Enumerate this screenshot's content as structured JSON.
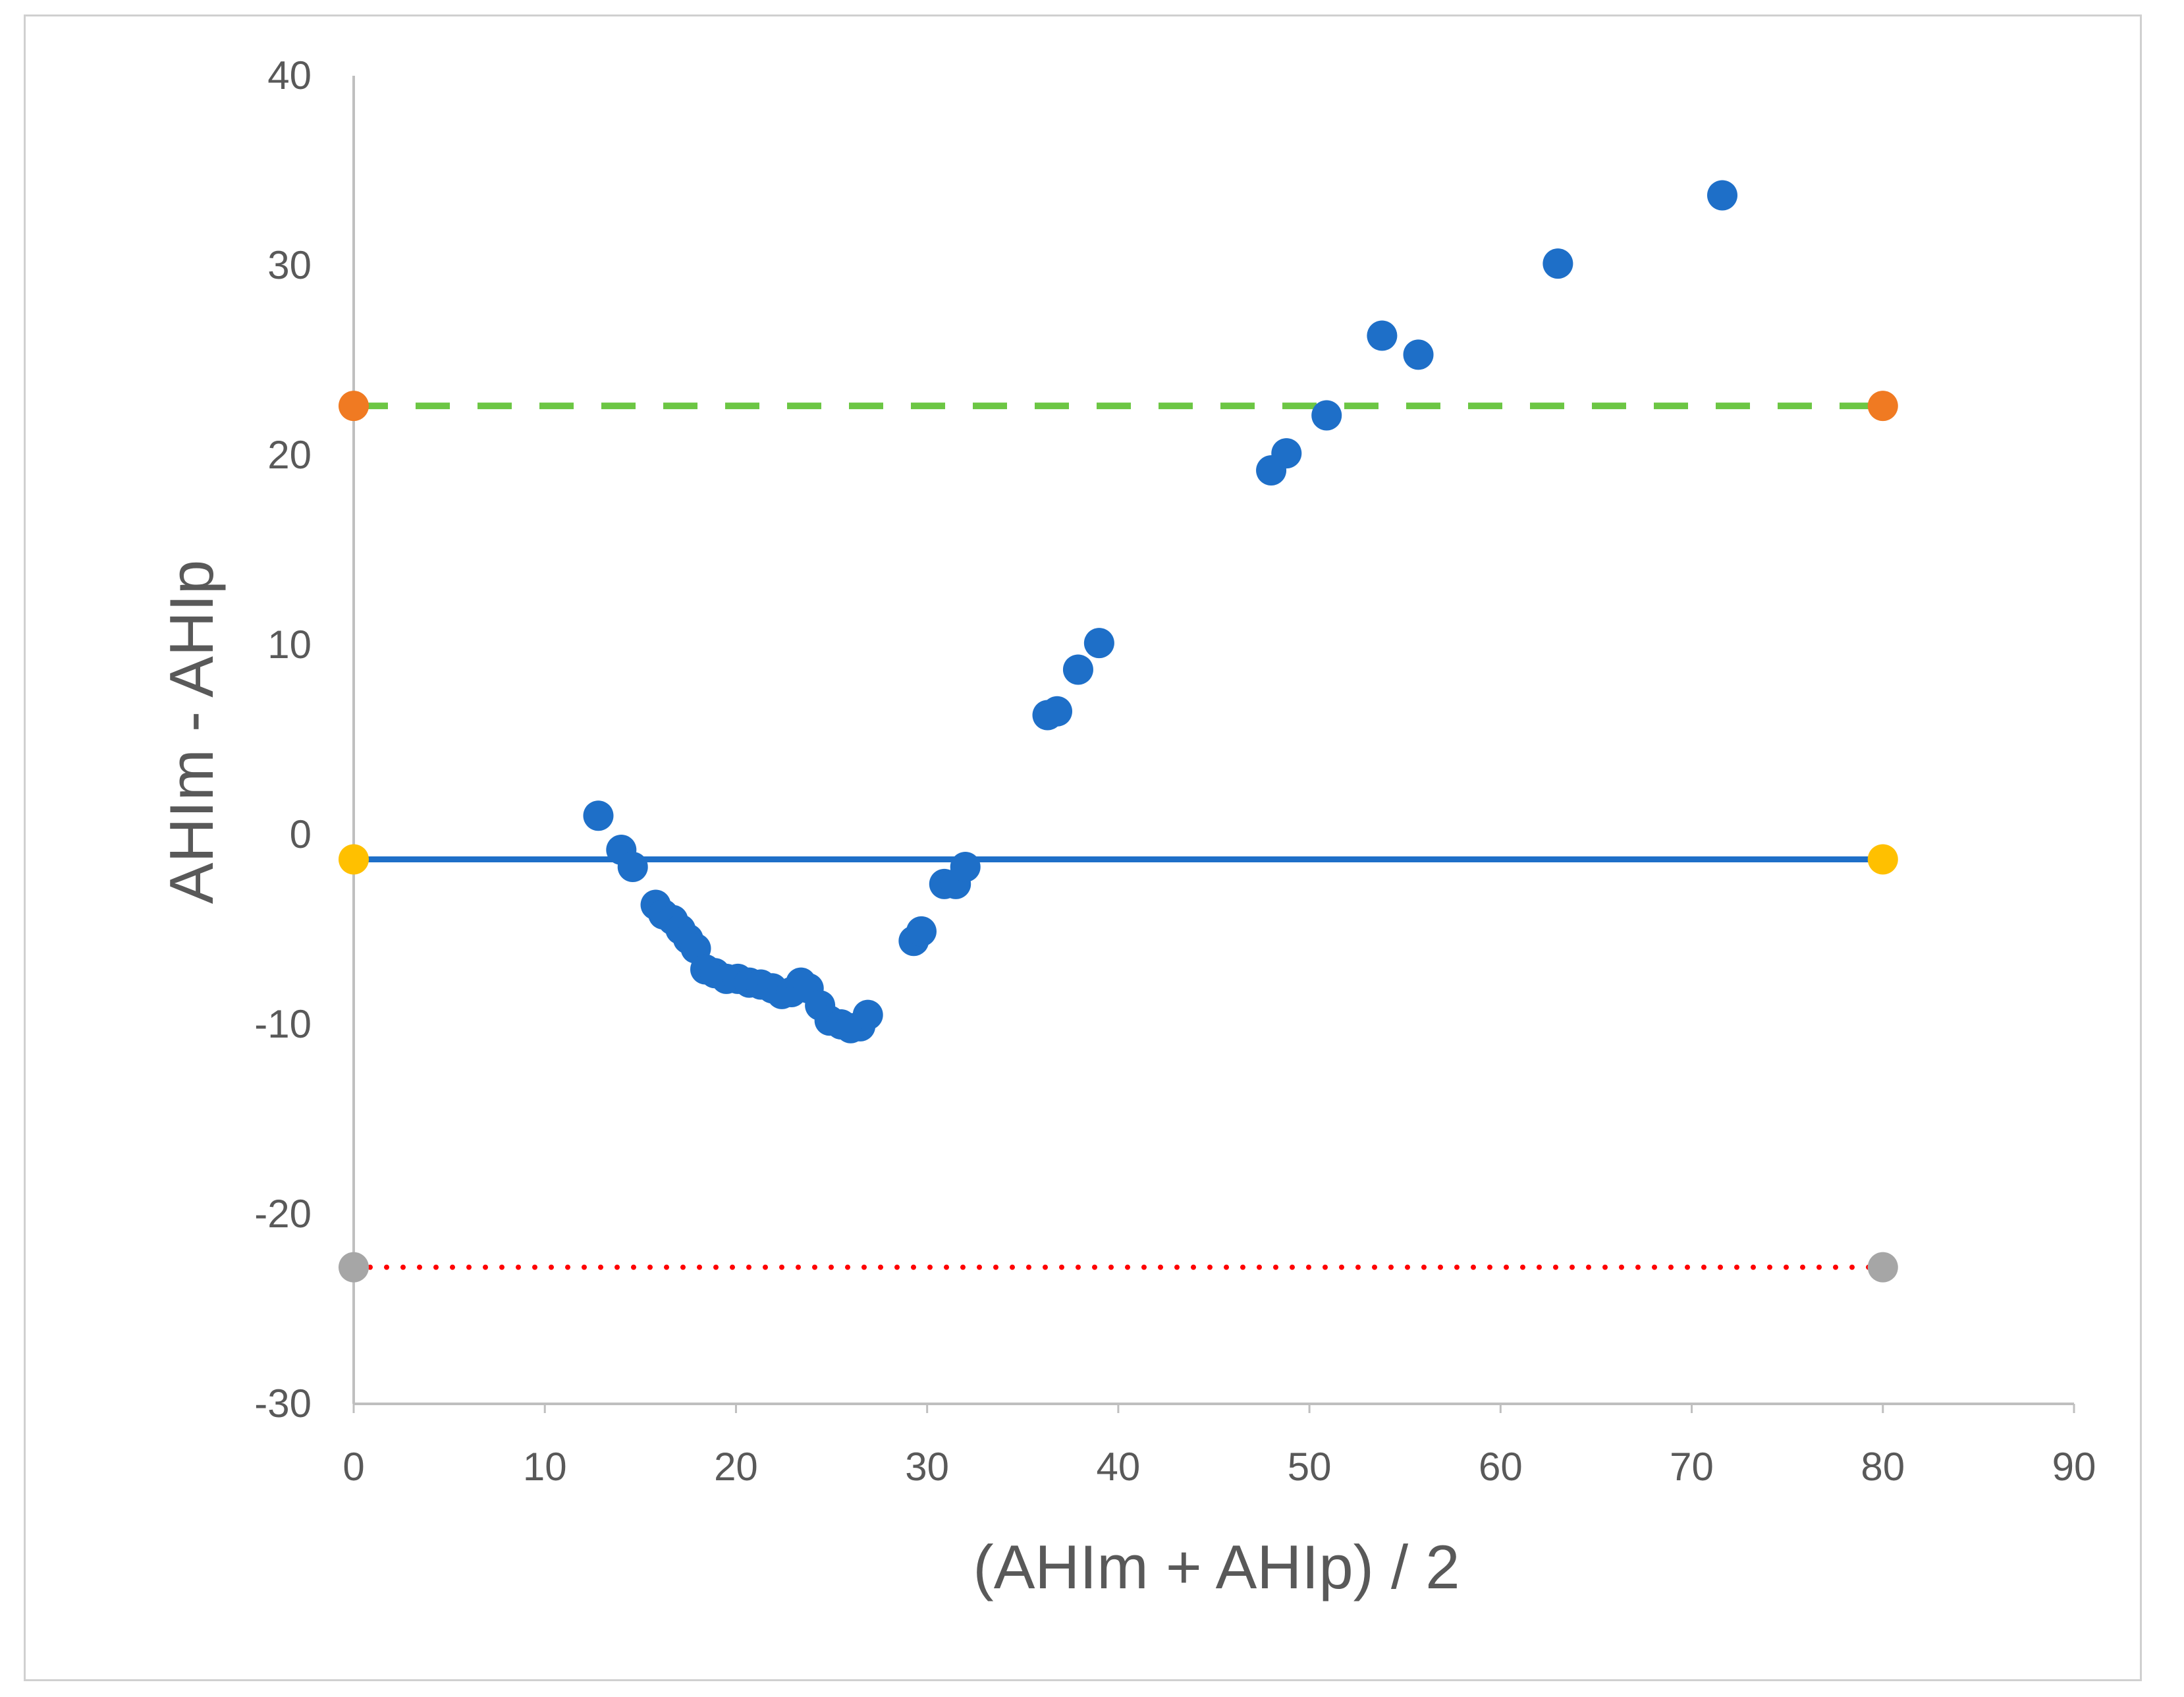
{
  "chart_data": {
    "type": "scatter",
    "title": "",
    "xlabel": "(AHIm + AHIp) / 2",
    "ylabel": "AHIm  -  AHIp",
    "xlim": [
      0,
      90
    ],
    "ylim": [
      -30,
      40
    ],
    "x_ticks": [
      "0",
      "10",
      "20",
      "30",
      "40",
      "50",
      "60",
      "70",
      "80",
      "90"
    ],
    "y_ticks": [
      "-30",
      "-20",
      "-10",
      "0",
      "10",
      "20",
      "30",
      "40"
    ],
    "grid": false,
    "legend": "none",
    "points": [
      [
        12.8,
        1.0
      ],
      [
        14.0,
        -0.8
      ],
      [
        14.6,
        -1.7
      ],
      [
        15.8,
        -3.7
      ],
      [
        16.2,
        -4.2
      ],
      [
        16.7,
        -4.5
      ],
      [
        17.1,
        -5.0
      ],
      [
        17.5,
        -5.5
      ],
      [
        17.9,
        -6.0
      ],
      [
        18.4,
        -7.1
      ],
      [
        18.9,
        -7.3
      ],
      [
        19.5,
        -7.6
      ],
      [
        20.1,
        -7.6
      ],
      [
        20.7,
        -7.8
      ],
      [
        21.3,
        -7.9
      ],
      [
        21.9,
        -8.1
      ],
      [
        22.4,
        -8.4
      ],
      [
        22.9,
        -8.3
      ],
      [
        23.4,
        -7.8
      ],
      [
        23.8,
        -8.1
      ],
      [
        24.4,
        -9.0
      ],
      [
        24.9,
        -9.8
      ],
      [
        25.5,
        -10.0
      ],
      [
        26.0,
        -10.2
      ],
      [
        26.5,
        -10.1
      ],
      [
        26.9,
        -9.5
      ],
      [
        29.3,
        -5.6
      ],
      [
        29.7,
        -5.1
      ],
      [
        30.9,
        -2.6
      ],
      [
        31.5,
        -2.6
      ],
      [
        32.0,
        -1.7
      ],
      [
        36.3,
        6.3
      ],
      [
        36.8,
        6.5
      ],
      [
        37.9,
        8.7
      ],
      [
        39.0,
        10.1
      ],
      [
        48.0,
        19.2
      ],
      [
        48.8,
        20.1
      ],
      [
        50.9,
        22.1
      ],
      [
        53.8,
        26.3
      ],
      [
        55.7,
        25.3
      ],
      [
        63.0,
        30.1
      ],
      [
        71.6,
        33.7
      ]
    ],
    "reference_lines": [
      {
        "style": "dashed",
        "color": "#6cc644",
        "y": 22.6,
        "x_range": [
          0,
          80
        ],
        "endpoint_color": "#f07a22"
      },
      {
        "style": "solid",
        "color": "#1e6fc8",
        "y": -1.3,
        "x_range": [
          0,
          80
        ],
        "endpoint_color": "#ffc000"
      },
      {
        "style": "dotted",
        "color": "#ff0000",
        "y": -22.8,
        "x_range": [
          0,
          80
        ],
        "endpoint_color": "#a6a6a6"
      }
    ],
    "point_color": "#1e6fc8",
    "axis_color": "#bfbfbf",
    "text_color": "#595959"
  }
}
